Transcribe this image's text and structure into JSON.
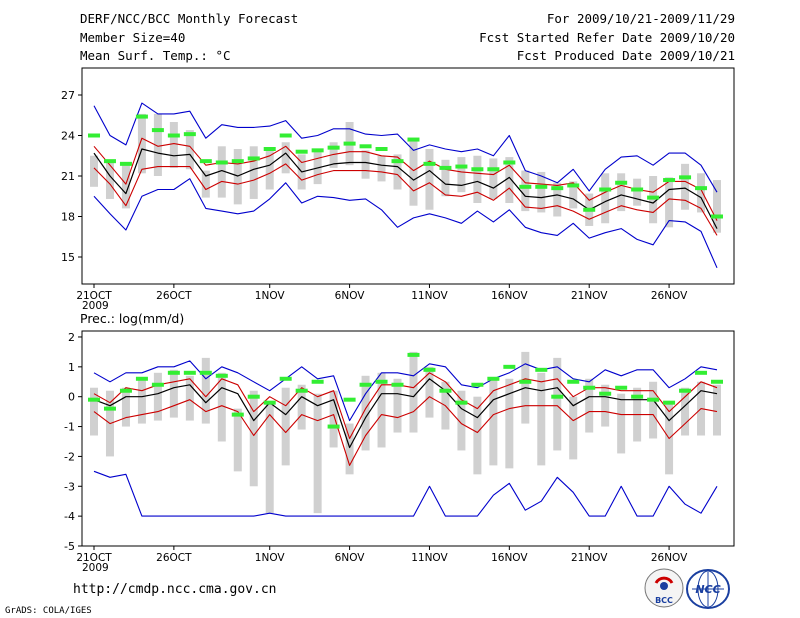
{
  "header": {
    "title": "DERF/NCC/BCC Monthly Forecast",
    "member_size": "Member Size=40",
    "variable": "Mean Surf. Temp.: °C",
    "period": "For 2009/10/21-2009/11/29",
    "refer_date": "Fcst Started Refer Date 2009/10/20",
    "produced_date": "Fcst Produced Date 2009/10/21"
  },
  "footer": {
    "url": "http://cmdp.ncc.cma.gov.cn",
    "grads": "GrADS: COLA/IGES",
    "logo_bcc": "BCC",
    "logo_ncc": "NCC"
  },
  "colors": {
    "ensemble_mean": "#000000",
    "spread": "#cc0000",
    "extremes": "#0000cc",
    "members_bar": "#d0d0d0",
    "observed_mark": "#33ee33"
  },
  "chart_data": [
    {
      "type": "line",
      "title": "Mean Surf. Temp.: °C",
      "days": 39,
      "x_tick_labels": [
        "21OCT",
        "26OCT",
        "1NOV",
        "6NOV",
        "11NOV",
        "16NOV",
        "21NOV",
        "26NOV"
      ],
      "x_tick_day_index": [
        0,
        5,
        11,
        16,
        21,
        26,
        31,
        36
      ],
      "x_year_label": "2009",
      "ylim": [
        13,
        29
      ],
      "yticks": [
        15,
        18,
        21,
        24,
        27
      ],
      "series": [
        {
          "name": "max",
          "values": [
            26.2,
            24.0,
            23.3,
            26.4,
            25.6,
            25.6,
            25.8,
            23.8,
            24.8,
            24.6,
            24.6,
            24.7,
            25.1,
            23.8,
            24.0,
            24.5,
            24.5,
            24.1,
            24.0,
            24.1,
            22.9,
            23.3,
            23.0,
            22.8,
            23.0,
            22.5,
            24.0,
            21.4,
            21.0,
            20.5,
            21.5,
            19.9,
            21.5,
            22.4,
            22.5,
            21.8,
            22.7,
            22.7,
            21.8,
            19.8
          ]
        },
        {
          "name": "mean_plus_sd",
          "values": [
            23.2,
            21.8,
            20.4,
            23.8,
            23.2,
            23.4,
            23.2,
            21.8,
            22.0,
            21.9,
            22.1,
            22.5,
            23.2,
            22.0,
            22.3,
            22.6,
            22.8,
            22.8,
            22.5,
            22.4,
            21.4,
            22.1,
            21.5,
            21.3,
            21.2,
            21.1,
            21.8,
            20.5,
            20.4,
            20.3,
            20.5,
            19.2,
            19.8,
            20.3,
            20.0,
            19.8,
            20.6,
            20.6,
            20.0,
            17.7
          ]
        },
        {
          "name": "mean",
          "values": [
            22.7,
            21.0,
            19.7,
            23.0,
            22.7,
            22.5,
            22.6,
            21.0,
            21.4,
            21.0,
            21.5,
            21.8,
            22.7,
            21.3,
            21.6,
            21.9,
            22.0,
            22.0,
            21.8,
            21.7,
            20.7,
            21.4,
            20.4,
            20.3,
            20.6,
            20.1,
            20.9,
            19.5,
            19.4,
            19.6,
            19.3,
            18.5,
            19.1,
            19.6,
            19.3,
            19.0,
            20.0,
            20.1,
            19.4,
            17.1
          ]
        },
        {
          "name": "mean_minus_sd",
          "values": [
            21.6,
            20.4,
            18.8,
            21.5,
            21.7,
            21.7,
            21.7,
            20.0,
            20.6,
            20.4,
            20.7,
            21.2,
            21.9,
            20.7,
            21.1,
            21.4,
            21.4,
            21.4,
            21.3,
            21.1,
            19.9,
            20.5,
            19.6,
            19.5,
            19.8,
            19.2,
            20.1,
            18.7,
            18.6,
            18.8,
            18.4,
            17.8,
            18.3,
            18.8,
            18.5,
            18.3,
            19.3,
            19.2,
            18.6,
            16.6
          ]
        },
        {
          "name": "min",
          "values": [
            19.5,
            18.2,
            17.0,
            19.5,
            20.0,
            20.0,
            20.8,
            18.6,
            18.4,
            18.2,
            18.4,
            19.3,
            20.5,
            19.0,
            19.5,
            19.4,
            19.2,
            19.3,
            18.5,
            17.2,
            17.9,
            18.2,
            17.9,
            17.5,
            18.4,
            17.6,
            18.5,
            17.2,
            16.8,
            16.6,
            17.5,
            16.4,
            16.8,
            17.1,
            16.3,
            15.9,
            17.7,
            17.6,
            16.9,
            14.2
          ]
        }
      ],
      "bars": [
        [
          20.2,
          22.5
        ],
        [
          19.3,
          22.2
        ],
        [
          18.6,
          21.8
        ],
        [
          21.2,
          25.6
        ],
        [
          21.0,
          25.6
        ],
        [
          21.6,
          25.0
        ],
        [
          21.5,
          24.4
        ],
        [
          19.4,
          21.4
        ],
        [
          19.4,
          23.2
        ],
        [
          18.9,
          23.0
        ],
        [
          19.3,
          23.2
        ],
        [
          20.0,
          23.0
        ],
        [
          21.2,
          23.5
        ],
        [
          20.0,
          22.6
        ],
        [
          20.4,
          23.0
        ],
        [
          21.6,
          23.5
        ],
        [
          21.8,
          25.0
        ],
        [
          20.8,
          22.9
        ],
        [
          20.6,
          22.5
        ],
        [
          20.0,
          22.6
        ],
        [
          18.8,
          23.6
        ],
        [
          18.5,
          23.0
        ],
        [
          19.5,
          22.2
        ],
        [
          19.8,
          22.4
        ],
        [
          19.0,
          22.5
        ],
        [
          19.3,
          22.3
        ],
        [
          19.0,
          22.4
        ],
        [
          18.4,
          21.4
        ],
        [
          18.3,
          21.3
        ],
        [
          18.0,
          20.5
        ],
        [
          18.6,
          20.6
        ],
        [
          17.3,
          19.7
        ],
        [
          17.5,
          21.2
        ],
        [
          18.4,
          21.2
        ],
        [
          18.8,
          20.8
        ],
        [
          17.5,
          21.0
        ],
        [
          17.2,
          20.9
        ],
        [
          18.5,
          21.9
        ],
        [
          18.3,
          21.2
        ],
        [
          16.8,
          20.7
        ]
      ],
      "marks": [
        24.0,
        22.1,
        21.9,
        25.4,
        24.4,
        24.0,
        24.1,
        22.1,
        22.0,
        22.1,
        22.3,
        23.0,
        24.0,
        22.8,
        22.9,
        23.1,
        23.4,
        23.2,
        23.0,
        22.1,
        23.7,
        21.9,
        21.6,
        21.7,
        21.5,
        21.5,
        22.0,
        20.2,
        20.2,
        20.1,
        20.3,
        18.5,
        20.0,
        20.5,
        20.0,
        19.4,
        20.7,
        20.9,
        20.1,
        18.0
      ]
    },
    {
      "type": "line",
      "title": "Prec.: log(mm/d)",
      "days": 39,
      "x_tick_labels": [
        "21OCT",
        "26OCT",
        "1NOV",
        "6NOV",
        "11NOV",
        "16NOV",
        "21NOV",
        "26NOV"
      ],
      "x_tick_day_index": [
        0,
        5,
        11,
        16,
        21,
        26,
        31,
        36
      ],
      "x_year_label": "2009",
      "ylim": [
        -5,
        2.2
      ],
      "yticks": [
        -5,
        -4,
        -3,
        -2,
        -1,
        0,
        1,
        2
      ],
      "series": [
        {
          "name": "max",
          "values": [
            0.8,
            0.5,
            0.8,
            0.8,
            1.0,
            1.0,
            1.2,
            0.6,
            1.0,
            0.8,
            0.5,
            0.2,
            0.6,
            1.0,
            0.6,
            0.7,
            -0.8,
            0.1,
            0.8,
            0.8,
            0.7,
            1.1,
            1.0,
            0.4,
            0.3,
            0.6,
            0.8,
            1.1,
            0.9,
            1.0,
            0.6,
            0.5,
            0.9,
            0.7,
            0.9,
            0.9,
            0.3,
            0.6,
            1.0,
            0.9
          ]
        },
        {
          "name": "mean_plus_sd",
          "values": [
            0.1,
            -0.2,
            0.3,
            0.2,
            0.4,
            0.5,
            0.6,
            0.0,
            0.6,
            0.4,
            -0.5,
            0.0,
            -0.3,
            0.3,
            0.0,
            0.2,
            -1.4,
            -0.4,
            0.4,
            0.4,
            0.3,
            0.8,
            0.5,
            -0.1,
            -0.4,
            0.2,
            0.4,
            0.6,
            0.5,
            0.6,
            0.0,
            0.3,
            0.3,
            0.2,
            0.2,
            0.2,
            -0.5,
            0.0,
            0.5,
            0.3
          ]
        },
        {
          "name": "mean",
          "values": [
            -0.1,
            -0.3,
            0.0,
            0.0,
            0.1,
            0.3,
            0.4,
            -0.2,
            0.3,
            0.1,
            -0.8,
            -0.2,
            -0.6,
            0.0,
            -0.3,
            -0.1,
            -1.7,
            -0.7,
            0.1,
            0.1,
            0.0,
            0.6,
            0.2,
            -0.4,
            -0.7,
            -0.1,
            0.1,
            0.3,
            0.2,
            0.3,
            -0.3,
            0.0,
            0.0,
            -0.1,
            -0.1,
            -0.1,
            -0.8,
            -0.3,
            0.2,
            0.1
          ]
        },
        {
          "name": "mean_minus_sd",
          "values": [
            -0.5,
            -0.9,
            -0.7,
            -0.6,
            -0.5,
            -0.3,
            -0.1,
            -0.5,
            -0.3,
            -0.5,
            -1.3,
            -0.6,
            -1.2,
            -0.6,
            -0.8,
            -0.6,
            -2.3,
            -1.3,
            -0.6,
            -0.7,
            -0.5,
            0.0,
            -0.3,
            -0.9,
            -1.2,
            -0.6,
            -0.4,
            -0.3,
            -0.3,
            -0.3,
            -0.8,
            -0.5,
            -0.5,
            -0.6,
            -0.6,
            -0.6,
            -1.4,
            -0.9,
            -0.4,
            -0.5
          ]
        },
        {
          "name": "min",
          "values": [
            -2.5,
            -2.7,
            -2.6,
            -4.0,
            -4.0,
            -4.0,
            -4.0,
            -4.0,
            -4.0,
            -4.0,
            -4.0,
            -3.9,
            -4.0,
            -4.0,
            -4.0,
            -4.0,
            -4.0,
            -4.0,
            -4.0,
            -4.0,
            -4.0,
            -3.0,
            -4.0,
            -4.0,
            -4.0,
            -3.3,
            -2.9,
            -3.8,
            -3.5,
            -2.7,
            -3.2,
            -4.0,
            -4.0,
            -3.0,
            -4.0,
            -4.0,
            -3.0,
            -3.6,
            -3.9,
            -3.0
          ]
        }
      ],
      "bars": [
        [
          -1.3,
          0.3
        ],
        [
          -2.0,
          0.2
        ],
        [
          -1.0,
          0.3
        ],
        [
          -0.9,
          0.6
        ],
        [
          -0.8,
          0.8
        ],
        [
          -0.7,
          0.9
        ],
        [
          -0.8,
          0.7
        ],
        [
          -0.9,
          1.3
        ],
        [
          -1.5,
          0.8
        ],
        [
          -2.5,
          -0.4
        ],
        [
          -3.0,
          0.2
        ],
        [
          -3.9,
          -0.2
        ],
        [
          -2.3,
          0.3
        ],
        [
          -1.1,
          0.4
        ],
        [
          -3.9,
          0.1
        ],
        [
          -1.7,
          0.2
        ],
        [
          -2.6,
          -0.9
        ],
        [
          -1.8,
          0.7
        ],
        [
          -1.7,
          0.8
        ],
        [
          -1.2,
          0.6
        ],
        [
          -1.2,
          1.5
        ],
        [
          -0.7,
          1.0
        ],
        [
          -1.1,
          0.5
        ],
        [
          -1.8,
          0.2
        ],
        [
          -2.6,
          0.0
        ],
        [
          -2.3,
          0.6
        ],
        [
          -2.4,
          0.6
        ],
        [
          -0.9,
          1.5
        ],
        [
          -2.3,
          0.8
        ],
        [
          -1.8,
          1.3
        ],
        [
          -2.1,
          0.0
        ],
        [
          -1.2,
          0.6
        ],
        [
          -1.0,
          0.4
        ],
        [
          -1.9,
          0.1
        ],
        [
          -1.5,
          0.3
        ],
        [
          -1.4,
          0.5
        ],
        [
          -2.6,
          -0.2
        ],
        [
          -1.3,
          0.3
        ],
        [
          -1.3,
          0.5
        ],
        [
          -1.3,
          0.4
        ]
      ],
      "marks": [
        -0.1,
        -0.4,
        0.2,
        0.6,
        0.4,
        0.8,
        0.8,
        0.8,
        0.7,
        -0.6,
        0.0,
        -0.2,
        0.6,
        0.2,
        0.5,
        -1.0,
        -0.1,
        0.4,
        0.5,
        0.4,
        1.4,
        0.9,
        0.2,
        -0.2,
        0.4,
        0.6,
        1.0,
        0.5,
        0.9,
        0.0,
        0.5,
        0.3,
        0.1,
        0.3,
        0.0,
        -0.1,
        -0.2,
        0.2,
        0.8,
        0.5
      ]
    }
  ]
}
